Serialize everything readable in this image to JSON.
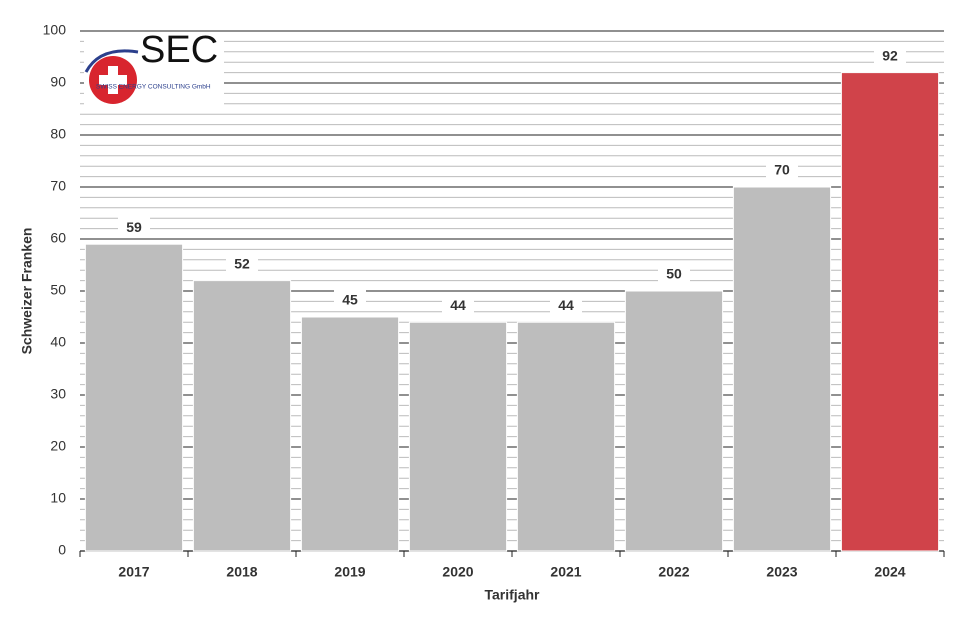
{
  "logo": {
    "title": "SEC",
    "subtitle": "SWISS ENERGY CONSULTING GmbH"
  },
  "chart_data": {
    "type": "bar",
    "x_label": "Tarifjahr",
    "y_label": "Schweizer Franken",
    "categories": [
      "2017",
      "2018",
      "2019",
      "2020",
      "2021",
      "2022",
      "2023",
      "2024"
    ],
    "values": [
      59,
      52,
      45,
      44,
      44,
      50,
      70,
      92
    ],
    "colors": [
      "#bdbdbd",
      "#bdbdbd",
      "#bdbdbd",
      "#bdbdbd",
      "#bdbdbd",
      "#bdbdbd",
      "#bdbdbd",
      "#d0434a"
    ],
    "ylim": [
      0,
      100
    ],
    "yticks": [
      0,
      10,
      20,
      30,
      40,
      50,
      60,
      70,
      80,
      90,
      100
    ],
    "grid": true
  }
}
